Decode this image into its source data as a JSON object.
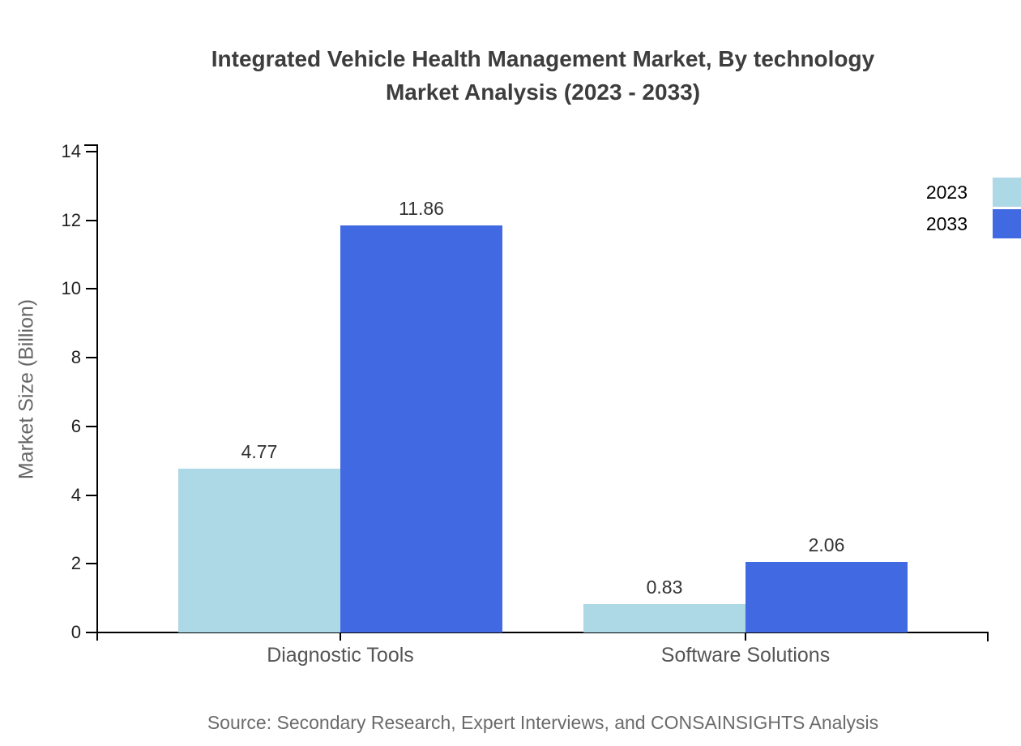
{
  "title": {
    "line1": "Integrated Vehicle Health Management Market, By technology",
    "line2": "Market Analysis (2023 - 2033)"
  },
  "source": "Source: Secondary Research, Expert Interviews, and CONSAINSIGHTS Analysis",
  "colors": {
    "series_2023": "#ADD8E6",
    "series_2033": "#4169E1",
    "axis": "#000000"
  },
  "legend": {
    "items": [
      {
        "label": "2023",
        "color": "#ADD8E6"
      },
      {
        "label": "2033",
        "color": "#4169E1"
      }
    ]
  },
  "chart_data": {
    "type": "bar",
    "title": "Integrated Vehicle Health Management Market, By technology Market Analysis (2023 - 2033)",
    "categories": [
      "Diagnostic Tools",
      "Software Solutions"
    ],
    "series": [
      {
        "name": "2023",
        "color": "#ADD8E6",
        "values": [
          4.77,
          0.83
        ]
      },
      {
        "name": "2033",
        "color": "#4169E1",
        "values": [
          11.86,
          2.06
        ]
      }
    ],
    "value_labels": [
      [
        "4.77",
        "0.83"
      ],
      [
        "11.86",
        "2.06"
      ]
    ],
    "xlabel": "",
    "ylabel": "Market Size (Billion)",
    "ylim": [
      0,
      14
    ],
    "yticks": [
      0,
      2,
      4,
      6,
      8,
      10,
      12,
      14
    ],
    "grid": false,
    "legend_position": "top-right"
  }
}
